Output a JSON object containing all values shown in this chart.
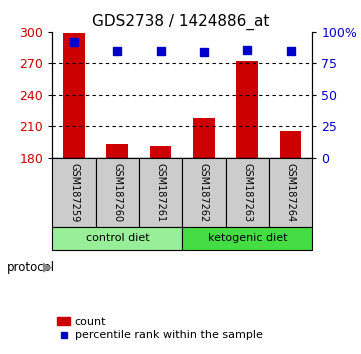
{
  "title": "GDS2738 / 1424886_at",
  "samples": [
    "GSM187259",
    "GSM187260",
    "GSM187261",
    "GSM187262",
    "GSM187263",
    "GSM187264"
  ],
  "counts": [
    299,
    193,
    191,
    218,
    272,
    206
  ],
  "percentile_ranks": [
    92,
    85,
    85,
    84,
    86,
    85
  ],
  "ylim_left": [
    180,
    300
  ],
  "ylim_right": [
    0,
    100
  ],
  "yticks_left": [
    180,
    210,
    240,
    270,
    300
  ],
  "yticks_right": [
    0,
    25,
    50,
    75,
    100
  ],
  "ytick_labels_right": [
    "0",
    "25",
    "50",
    "75",
    "100%"
  ],
  "bar_color": "#cc0000",
  "square_color": "#0000cc",
  "bar_bottom": 180,
  "groups": [
    {
      "label": "control diet",
      "indices": [
        0,
        1,
        2
      ],
      "color": "#99ee99"
    },
    {
      "label": "ketogenic diet",
      "indices": [
        3,
        4,
        5
      ],
      "color": "#44dd44"
    }
  ],
  "sample_box_color": "#cccccc",
  "protocol_label": "protocol",
  "legend_count_label": "count",
  "legend_pct_label": "percentile rank within the sample",
  "gridline_yticks": [
    210,
    240,
    270
  ]
}
